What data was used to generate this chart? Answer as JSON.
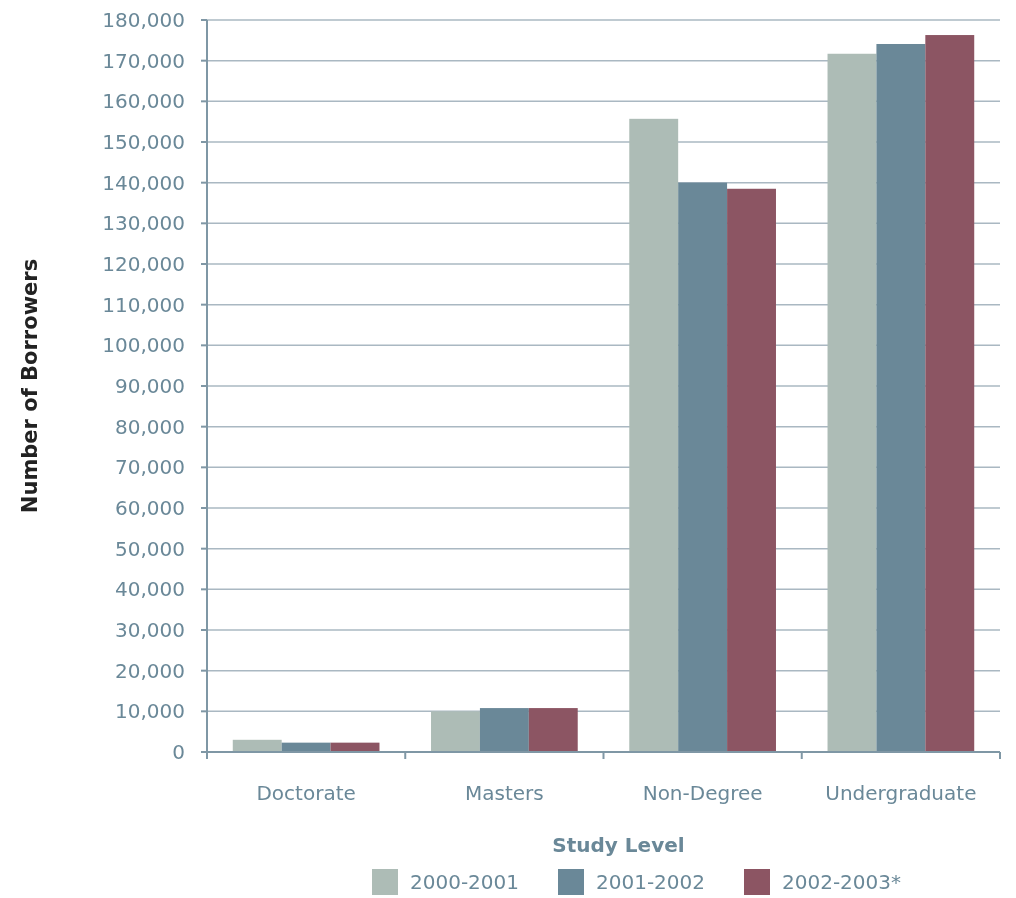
{
  "chart_data": {
    "type": "bar",
    "xlabel": "Study Level",
    "ylabel": "Number of Borrowers",
    "categories": [
      "Doctorate",
      "Masters",
      "Non-Degree",
      "Undergraduate"
    ],
    "series": [
      {
        "name": "2000-2001",
        "color": "#adbcb6",
        "values": [
          3000,
          10000,
          155700,
          171700
        ]
      },
      {
        "name": "2001-2002",
        "color": "#6a8898",
        "values": [
          2300,
          10800,
          140000,
          174100
        ]
      },
      {
        "name": "2002-2003*",
        "color": "#8c5563",
        "values": [
          2300,
          10800,
          138500,
          176300
        ]
      }
    ],
    "ylim": [
      0,
      180000
    ],
    "yticks": [
      {
        "value": 0,
        "label": "0"
      },
      {
        "value": 10000,
        "label": "10,000"
      },
      {
        "value": 20000,
        "label": "20,000"
      },
      {
        "value": 30000,
        "label": "30,000"
      },
      {
        "value": 40000,
        "label": "40,000"
      },
      {
        "value": 50000,
        "label": "50,000"
      },
      {
        "value": 60000,
        "label": "60,000"
      },
      {
        "value": 70000,
        "label": "70,000"
      },
      {
        "value": 80000,
        "label": "80,000"
      },
      {
        "value": 90000,
        "label": "90,000"
      },
      {
        "value": 100000,
        "label": "100,000"
      },
      {
        "value": 110000,
        "label": "110,000"
      },
      {
        "value": 120000,
        "label": "120,000"
      },
      {
        "value": 130000,
        "label": "130,000"
      },
      {
        "value": 140000,
        "label": "140,000"
      },
      {
        "value": 150000,
        "label": "150,000"
      },
      {
        "value": 160000,
        "label": "160,000"
      },
      {
        "value": 170000,
        "label": "170,000"
      },
      {
        "value": 180000,
        "label": "180,000"
      }
    ],
    "grid": "y",
    "legend": "bottom"
  }
}
